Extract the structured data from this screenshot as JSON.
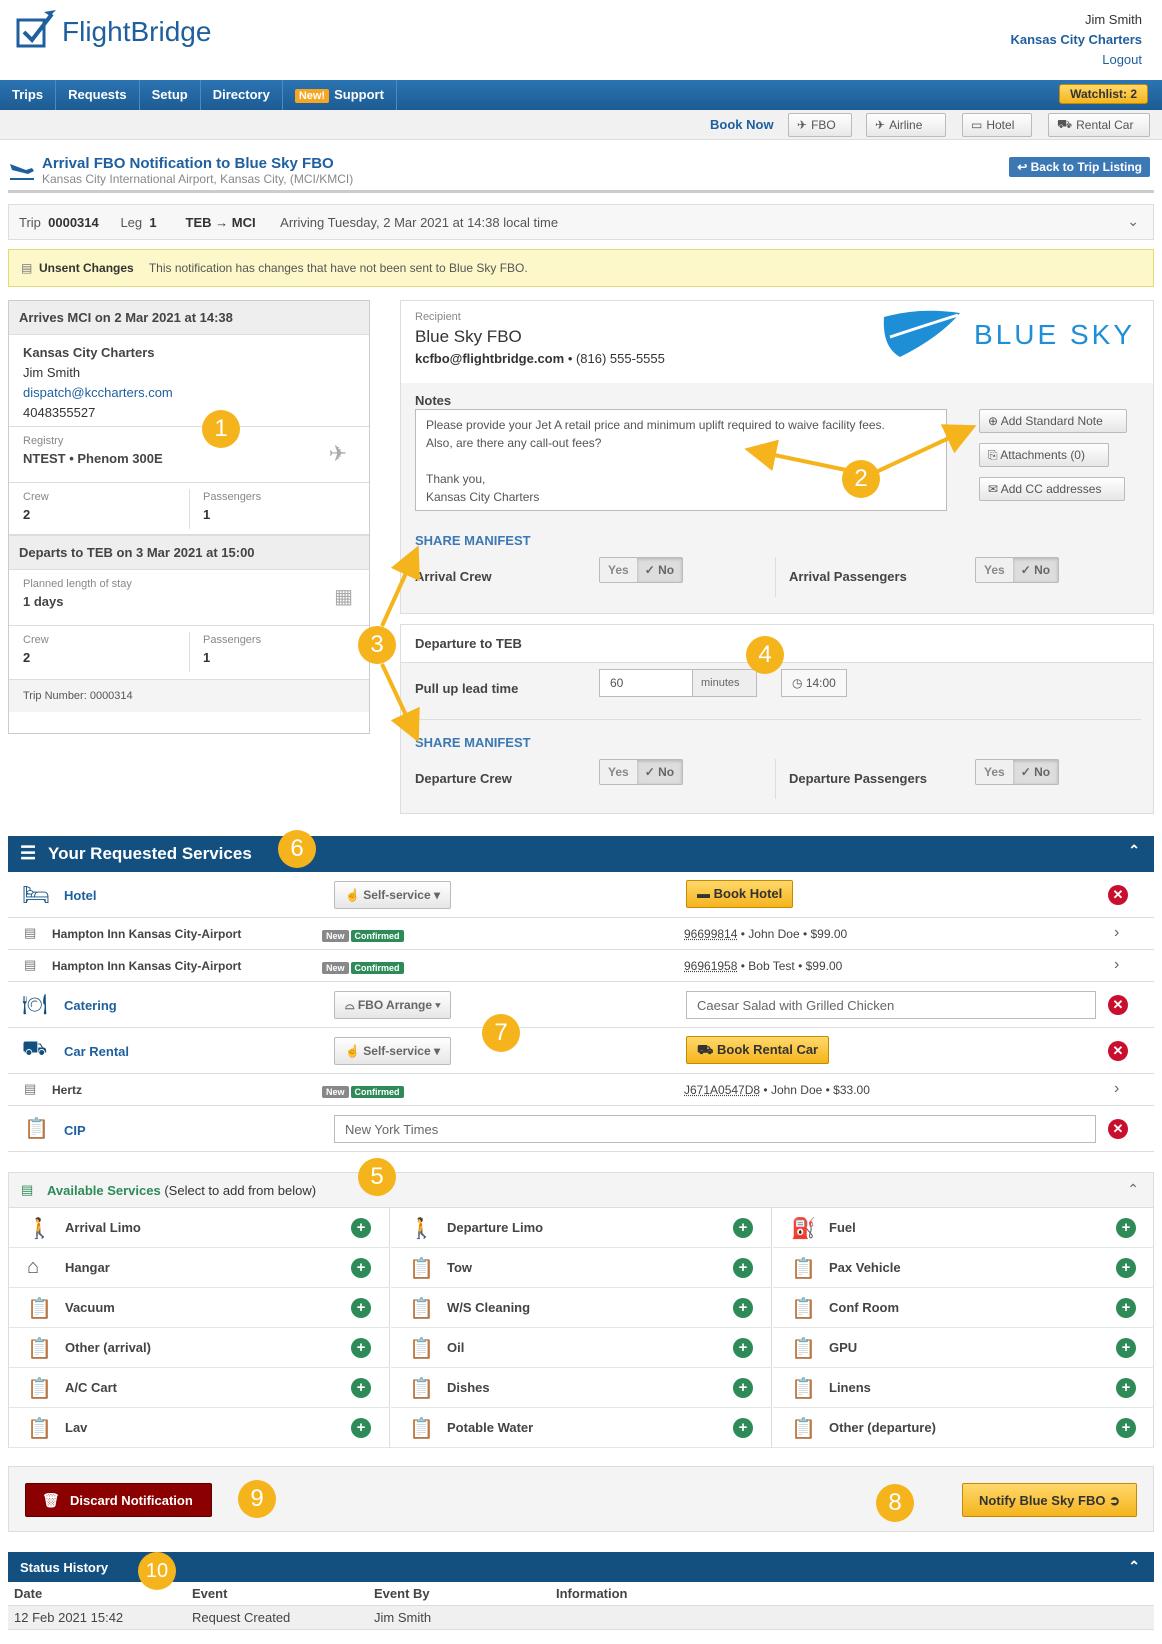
{
  "header": {
    "logo_text": "FlightBridge",
    "user_name": "Jim Smith",
    "company": "Kansas City Charters",
    "logout": "Logout"
  },
  "nav": {
    "items": [
      "Trips",
      "Requests",
      "Setup",
      "Directory"
    ],
    "new_badge": "New!",
    "support": "Support",
    "watchlist": "Watchlist: 2"
  },
  "booknow": {
    "label": "Book Now",
    "fbo": "FBO",
    "airline": "Airline",
    "hotel": "Hotel",
    "rental": "Rental Car"
  },
  "page": {
    "title": "Arrival FBO Notification to Blue Sky FBO",
    "subtitle": "Kansas City International Airport, Kansas City, (MCI/KMCI)",
    "back": "Back to Trip Listing"
  },
  "tripbar": {
    "trip_label": "Trip",
    "trip_no": "0000314",
    "leg_label": "Leg",
    "leg_no": "1",
    "route": "TEB → MCI",
    "arriving": "Arriving Tuesday, 2 Mar 2021 at 14:38 local time"
  },
  "unsent": {
    "title": "Unsent Changes",
    "text": "This notification has changes that have not been sent to Blue Sky FBO."
  },
  "left": {
    "arrives": "Arrives MCI on 2 Mar 2021 at 14:38",
    "company": "Kansas City Charters",
    "contact": "Jim Smith",
    "email": "dispatch@kccharters.com",
    "phone": "4048355527",
    "registry_label": "Registry",
    "registry": "NTEST • Phenom 300E",
    "crew_label": "Crew",
    "crew": "2",
    "pax_label": "Passengers",
    "pax": "1",
    "departs": "Departs to TEB on 3 Mar 2021 at 15:00",
    "stay_label": "Planned length of stay",
    "stay": "1 days",
    "crew2": "2",
    "pax2": "1",
    "trip_number": "Trip Number: 0000314"
  },
  "recipient": {
    "label": "Recipient",
    "name": "Blue Sky FBO",
    "email": "kcfbo@flightbridge.com",
    "phone": "• (816) 555-5555",
    "logo_text": "BLUE SKY",
    "notes_label": "Notes",
    "notes_lines": [
      "Please provide your Jet A retail price and minimum uplift required to waive facility fees.",
      "Also, are there any call-out fees?",
      "",
      "Thank you,",
      "Kansas City Charters"
    ],
    "add_note": "Add Standard Note",
    "attachments": "Attachments (0)",
    "add_cc": "Add CC addresses",
    "share_manifest": "SHARE MANIFEST",
    "arrival_crew": "Arrival Crew",
    "arrival_pax": "Arrival Passengers",
    "yes": "Yes",
    "no": "✓ No"
  },
  "departure": {
    "title": "Departure to TEB",
    "pullup_label": "Pull up lead time",
    "pullup_value": "60",
    "minutes": "minutes",
    "time": "14:00",
    "share_manifest": "SHARE MANIFEST",
    "dep_crew": "Departure Crew",
    "dep_pax": "Departure Passengers"
  },
  "services": {
    "title": "Your Requested Services",
    "hotel": "Hotel",
    "self_service": "Self-service",
    "book_hotel": "Book Hotel",
    "hotel1": "Hampton Inn Kansas City-Airport",
    "hotel1_ref": "96699814",
    "hotel1_info": "• John Doe • $99.00",
    "hotel2": "Hampton Inn Kansas City-Airport",
    "hotel2_ref": "96961958",
    "hotel2_info": "• Bob Test • $99.00",
    "tag_new": "New",
    "tag_confirmed": "Confirmed",
    "catering": "Catering",
    "fbo_arrange": "FBO Arrange",
    "catering_value": "Caesar Salad with Grilled Chicken",
    "car_rental": "Car Rental",
    "book_rental": "Book Rental Car",
    "hertz": "Hertz",
    "hertz_ref": "J671A0547D8",
    "hertz_info": "• John Doe • $33.00",
    "cip": "CIP",
    "cip_value": "New York Times"
  },
  "available": {
    "title": "Available Services",
    "subtitle": "(Select to add from below)",
    "items": [
      [
        "Arrival Limo",
        "Departure Limo",
        "Fuel"
      ],
      [
        "Hangar",
        "Tow",
        "Pax Vehicle"
      ],
      [
        "Vacuum",
        "W/S Cleaning",
        "Conf Room"
      ],
      [
        "Other (arrival)",
        "Oil",
        "GPU"
      ],
      [
        "A/C Cart",
        "Dishes",
        "Linens"
      ],
      [
        "Lav",
        "Potable Water",
        "Other (departure)"
      ]
    ]
  },
  "footer": {
    "discard": "Discard Notification",
    "notify": "Notify Blue Sky FBO"
  },
  "status": {
    "title": "Status History",
    "cols": [
      "Date",
      "Event",
      "Event By",
      "Information"
    ],
    "rows": [
      [
        "12 Feb 2021 15:42",
        "Request Created",
        "Jim Smith",
        ""
      ]
    ]
  },
  "badges": [
    "1",
    "2",
    "3",
    "4",
    "5",
    "6",
    "7",
    "8",
    "9",
    "10"
  ],
  "colors": {
    "accent": "#1f5f9e",
    "header": "#13507f",
    "badge": "#f5b41c",
    "add": "#2e8b57",
    "remove": "#c8102e"
  }
}
